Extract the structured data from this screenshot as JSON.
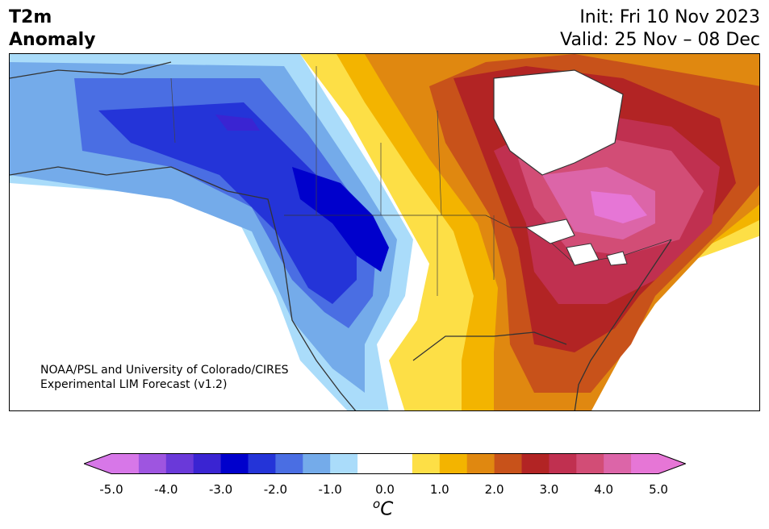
{
  "title": {
    "line1": "T2m",
    "line2": "Anomaly"
  },
  "dates": {
    "init": "Init: Fri 10 Nov 2023",
    "valid": "Valid: 25 Nov – 08 Dec"
  },
  "credit": {
    "line1": "NOAA/PSL and University of Colorado/CIRES",
    "line2": "Experimental LIM Forecast (v1.2)"
  },
  "colorbar": {
    "unit": "oC",
    "ticks": [
      "-5.0",
      "-4.0",
      "-3.0",
      "-2.0",
      "-1.0",
      "0.0",
      "1.0",
      "2.0",
      "3.0",
      "4.0",
      "5.0"
    ],
    "colors": [
      "#d777e8",
      "#9e55e0",
      "#6a39d9",
      "#3a24d2",
      "#0000cc",
      "#2434d8",
      "#4a6ee3",
      "#74abea",
      "#aadcfa",
      "#ffffff",
      "#ffffff",
      "#fddf46",
      "#f3b400",
      "#e08810",
      "#c8521a",
      "#b22424",
      "#c03050",
      "#d24d76",
      "#dc65a8",
      "#e676d6"
    ],
    "over_color": "#e676d6",
    "under_color": "#d777e8"
  },
  "regions": {
    "cold_alaska": "cold anomaly",
    "cold_rockies": "strong cold anomaly",
    "warm_east": "warm anomaly",
    "warm_quebec": "strong warm anomaly"
  }
}
